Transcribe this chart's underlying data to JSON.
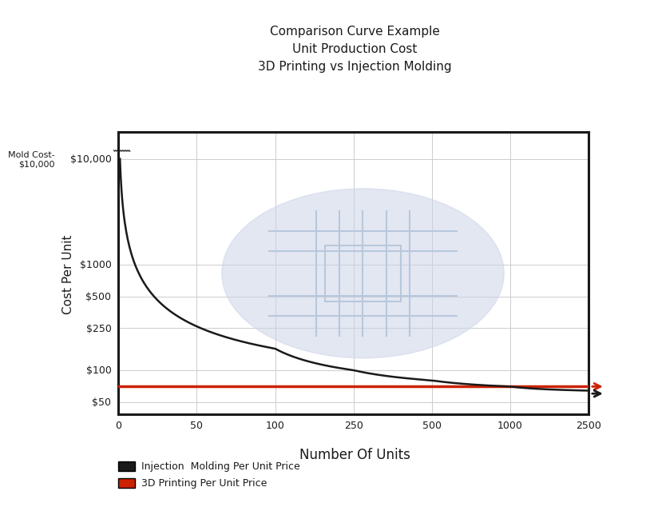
{
  "title_line1": "Comparison Curve Example",
  "title_line2": "Unit Production Cost",
  "title_line3": "3D Printing vs Injection Molding",
  "xlabel": "Number Of Units",
  "ylabel": "Cost Per Unit",
  "mold_cost_label": "Mold Cost-\n$10,000",
  "injection_mold_label": "Injection  Molding Per Unit Price",
  "printing_label": "3D Printing Per Unit Price",
  "x_ticks": [
    0,
    50,
    100,
    250,
    500,
    1000,
    2500
  ],
  "y_ticks": [
    50,
    100,
    250,
    500,
    1000,
    10000
  ],
  "y_tick_labels": [
    "$50",
    "$100",
    "$250",
    "$500",
    "$1000",
    "$10,000"
  ],
  "injection_color": "#1a1a1a",
  "printing_color": "#cc2200",
  "mold_cost": 10000,
  "unit_cost_variable": 60,
  "printing_unit_cost": 70,
  "x_end": 2500,
  "background_color": "#ffffff",
  "watermark_color": "#ccd4e8"
}
